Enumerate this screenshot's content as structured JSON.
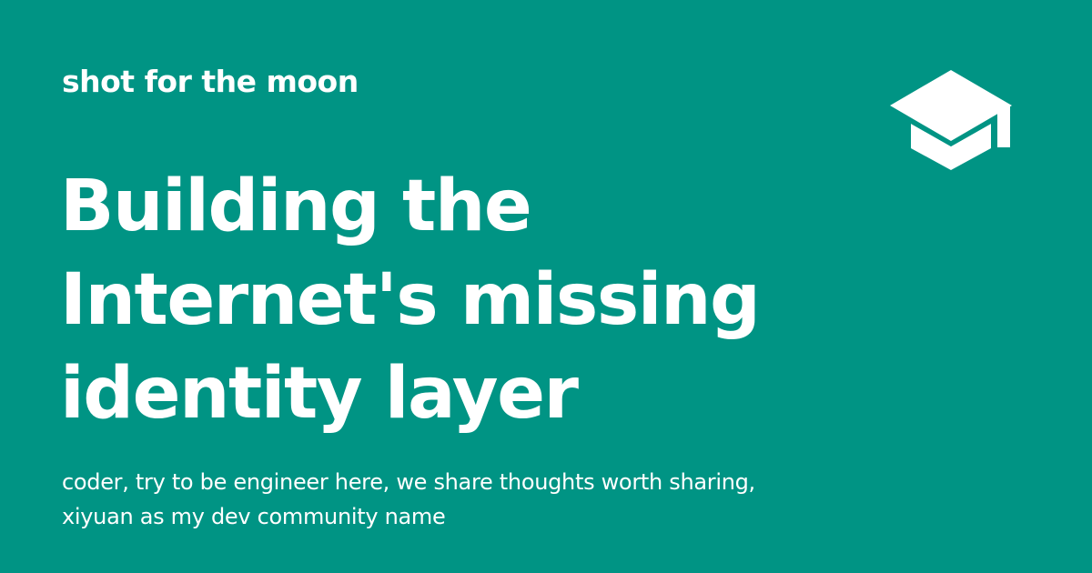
{
  "site_name": "shot for the moon",
  "logo_icon": "graduation-cap-icon",
  "title_lines": [
    "Building the",
    "Internet's missing",
    "identity layer"
  ],
  "description_lines": [
    "coder, try to be engineer here, we share thoughts worth sharing,",
    "xiyuan as my dev community name"
  ],
  "colors": {
    "background": "#009484",
    "foreground": "#ffffff"
  }
}
